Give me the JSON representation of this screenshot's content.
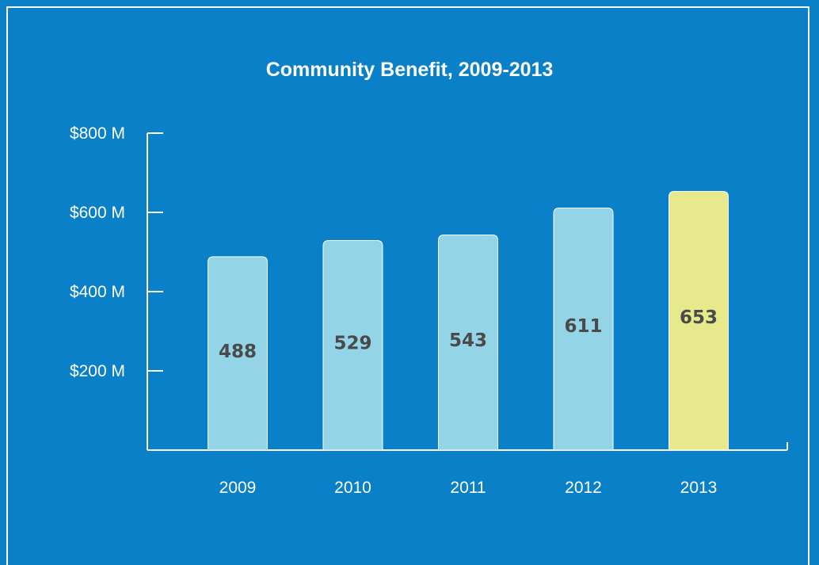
{
  "chart_data": {
    "type": "bar",
    "title": "Community Benefit, 2009-2013",
    "xlabel": "",
    "ylabel": "",
    "categories": [
      "2009",
      "2010",
      "2011",
      "2012",
      "2013"
    ],
    "values": [
      488,
      529,
      543,
      611,
      653
    ],
    "ylim": [
      0,
      800
    ],
    "y_ticks": [
      200,
      400,
      600,
      800
    ],
    "y_tick_labels": [
      "$200 M",
      "$400 M",
      "$600 M",
      "$800 M"
    ],
    "data_labels": [
      "488",
      "529",
      "543",
      "611",
      "653"
    ],
    "grid": false,
    "legend": "none",
    "highlight_index": 4,
    "colors": {
      "background": "#0a80c8",
      "bar": "#93d4e7",
      "highlight_bar": "#e7ea8c",
      "axis": "#ffffff",
      "data_label": "#4a4a4a"
    }
  }
}
